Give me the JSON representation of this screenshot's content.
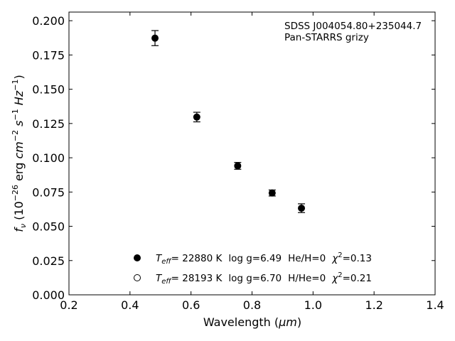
{
  "chart_data": {
    "type": "scatter",
    "xlabel_pre": "Wavelength (",
    "xlabel_unit": "μm",
    "xlabel_post": ")",
    "ylabel": {
      "f": "f",
      "nu": "ν",
      "open": " (10",
      "exp": "−26",
      "erg": " erg ",
      "cm": "cm",
      "cm_exp": "−2",
      "s": " s",
      "s_exp": "−1",
      "hz": " Hz",
      "hz_exp": "−1",
      "close": ")"
    },
    "xlim": [
      0.2,
      1.4
    ],
    "ylim": [
      0.0,
      0.2063
    ],
    "xticks": [
      0.2,
      0.4,
      0.6,
      0.8,
      1.0,
      1.2,
      1.4
    ],
    "xtick_labels": [
      "0.2",
      "0.4",
      "0.6",
      "0.8",
      "1.0",
      "1.2",
      "1.4"
    ],
    "yticks": [
      0.0,
      0.025,
      0.05,
      0.075,
      0.1,
      0.125,
      0.15,
      0.175,
      0.2
    ],
    "ytick_labels": [
      "0.000",
      "0.025",
      "0.050",
      "0.075",
      "0.100",
      "0.125",
      "0.150",
      "0.175",
      "0.200"
    ],
    "annotation": [
      "SDSS J004054.80+235044.7",
      "Pan-STARRS grizy"
    ],
    "series": [
      {
        "marker": "filled",
        "points": [
          {
            "x": 0.482,
            "y": 0.1873,
            "yerr": 0.0055
          },
          {
            "x": 0.619,
            "y": 0.1297,
            "yerr": 0.0035
          },
          {
            "x": 0.753,
            "y": 0.0941,
            "yerr": 0.0025
          },
          {
            "x": 0.866,
            "y": 0.0743,
            "yerr": 0.0022
          },
          {
            "x": 0.962,
            "y": 0.0632,
            "yerr": 0.0032
          }
        ]
      }
    ],
    "legend": [
      {
        "marker": "filled",
        "teff_sym": "T",
        "teff_sub": "eff",
        "teff_val": "= 22880 K",
        "logg": "log g=6.49",
        "comp": "He/H=0",
        "chi_sym": "χ",
        "chi_exp": "2",
        "chi_val": "=0.13"
      },
      {
        "marker": "open",
        "teff_sym": "T",
        "teff_sub": "eff",
        "teff_val": "= 28193 K",
        "logg": "log g=6.70",
        "comp": "H/He=0",
        "chi_sym": "χ",
        "chi_exp": "2",
        "chi_val": "=0.21"
      }
    ],
    "legend_placement": "lower-center",
    "grid": false,
    "colors": {
      "marker": "#000000",
      "axes": "#000000",
      "background": "#ffffff"
    }
  }
}
